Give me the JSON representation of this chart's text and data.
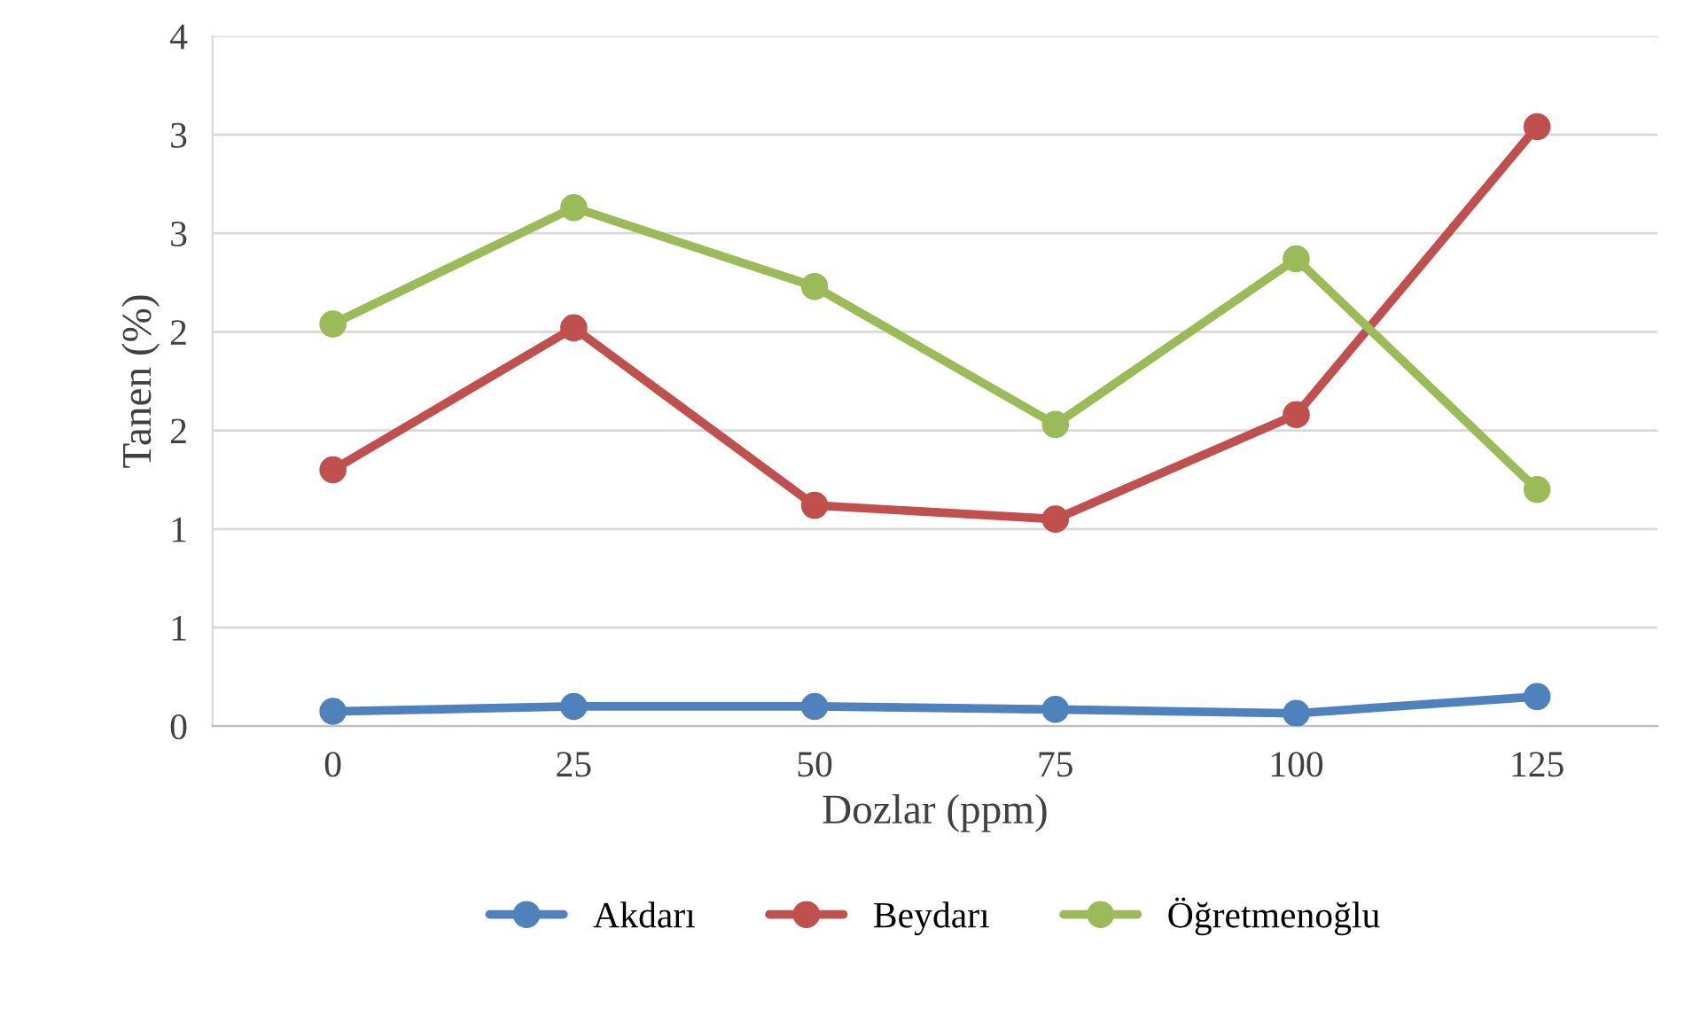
{
  "chart_data": {
    "type": "line",
    "xlabel": "Dozlar (ppm)",
    "ylabel": "Tanen (%)",
    "categories": [
      "0",
      "25",
      "50",
      "75",
      "100",
      "125"
    ],
    "series": [
      {
        "name": "Akdarı",
        "color": "#4f81bd",
        "values": [
          0.075,
          0.1,
          0.1,
          0.085,
          0.065,
          0.15
        ]
      },
      {
        "name": "Beydarı",
        "color": "#c0504d",
        "values": [
          1.3,
          2.02,
          1.12,
          1.05,
          1.58,
          3.04
        ]
      },
      {
        "name": "Öğretmenoğlu",
        "color": "#9bbb59",
        "values": [
          2.04,
          2.63,
          2.23,
          1.53,
          2.37,
          1.2
        ]
      }
    ],
    "ylim": [
      0,
      3.5
    ],
    "yticks": [
      0,
      {
        "value": 0.5,
        "label": "1"
      },
      1,
      {
        "value": 1.5,
        "label": "2"
      },
      2,
      {
        "value": 2.5,
        "label": "3"
      },
      3,
      {
        "value": 3.5,
        "label": "4"
      }
    ],
    "grid": "y",
    "legend": "bottom",
    "marker": "circle",
    "line_style": "solid"
  }
}
